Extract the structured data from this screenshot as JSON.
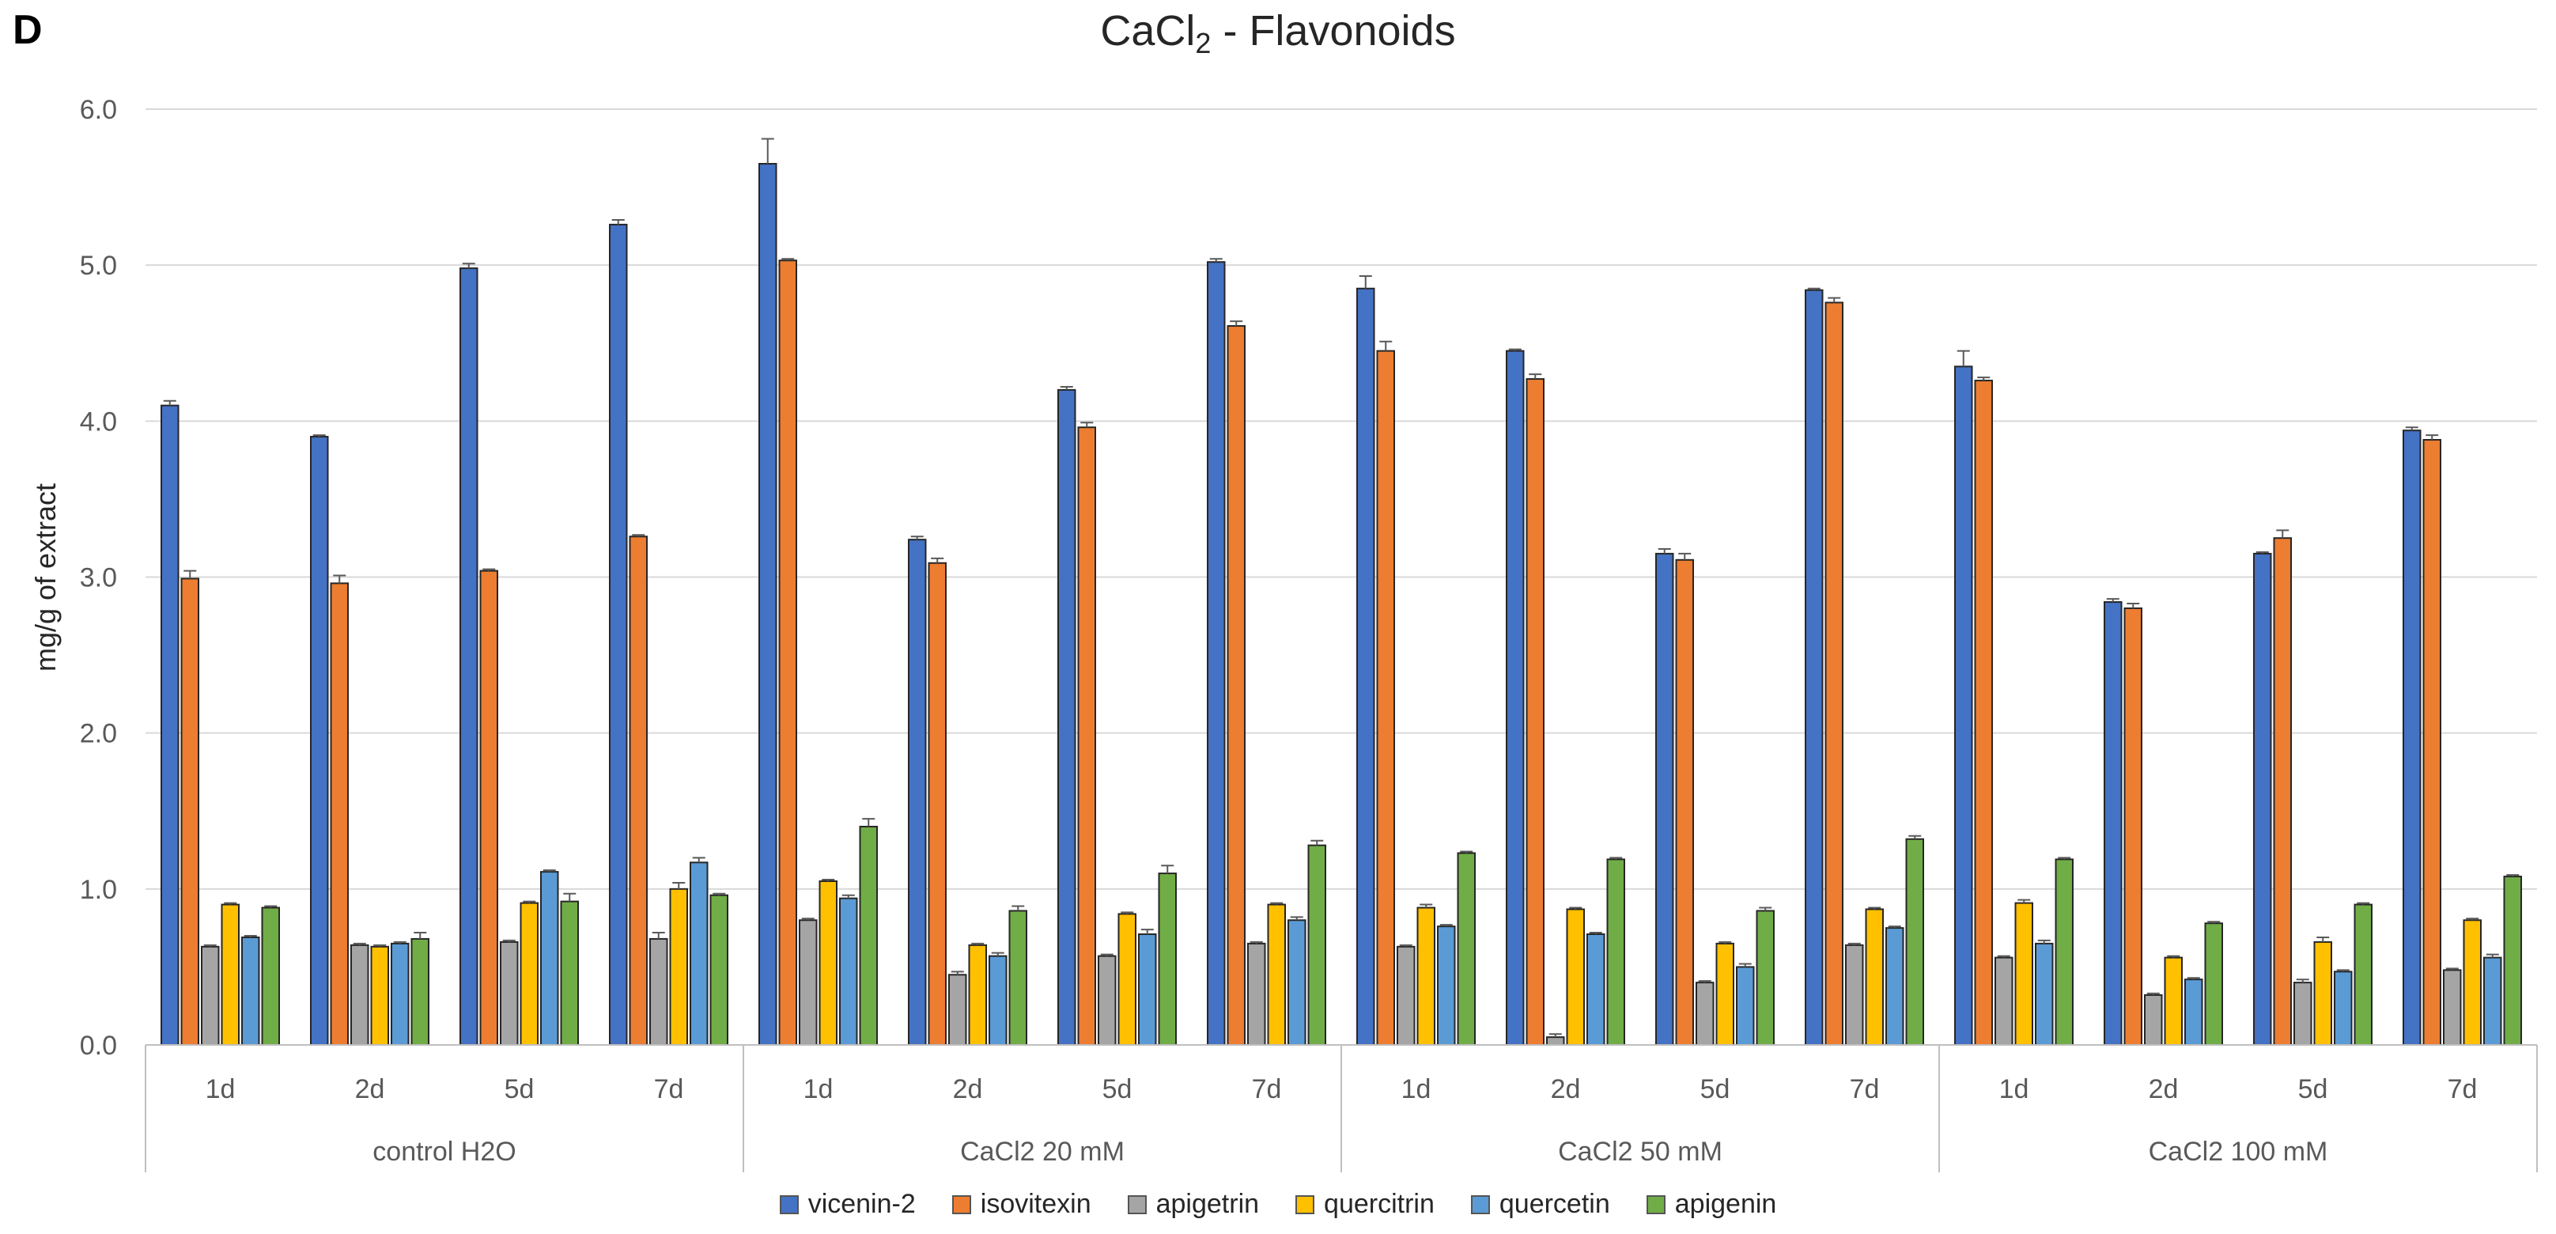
{
  "panel_label": "D",
  "title_main": "CaCl",
  "title_sub": "2",
  "title_rest": " - Flavonoids",
  "chart_data": {
    "type": "bar",
    "title": "CaCl2 - Flavonoids",
    "ylabel": "mg/g of extract",
    "xlabel": "",
    "ylim": [
      0,
      6
    ],
    "yticks": [
      "0.0",
      "1.0",
      "2.0",
      "3.0",
      "4.0",
      "5.0",
      "6.0"
    ],
    "groups": [
      {
        "name": "control H2O",
        "days": [
          "1d",
          "2d",
          "5d",
          "7d"
        ]
      },
      {
        "name": "CaCl2 20 mM",
        "days": [
          "1d",
          "2d",
          "5d",
          "7d"
        ]
      },
      {
        "name": "CaCl2 50 mM",
        "days": [
          "1d",
          "2d",
          "5d",
          "7d"
        ]
      },
      {
        "name": "CaCl2 100 mM",
        "days": [
          "1d",
          "2d",
          "5d",
          "7d"
        ]
      }
    ],
    "series": [
      {
        "name": "vicenin-2",
        "color": "#4472C4",
        "values": [
          4.1,
          3.9,
          4.98,
          5.26,
          5.65,
          3.24,
          4.2,
          5.02,
          4.85,
          4.45,
          3.15,
          4.84,
          4.35,
          2.84,
          3.15,
          3.94
        ],
        "errors": [
          0.03,
          0.01,
          0.03,
          0.03,
          0.16,
          0.02,
          0.02,
          0.02,
          0.08,
          0.01,
          0.03,
          0.01,
          0.1,
          0.02,
          0.01,
          0.02
        ]
      },
      {
        "name": "isovitexin",
        "color": "#ED7D31",
        "values": [
          2.99,
          2.96,
          3.04,
          3.26,
          5.03,
          3.09,
          3.96,
          4.61,
          4.45,
          4.27,
          3.11,
          4.76,
          4.26,
          2.8,
          3.25,
          3.88
        ],
        "errors": [
          0.05,
          0.05,
          0.01,
          0.01,
          0.01,
          0.03,
          0.03,
          0.03,
          0.06,
          0.03,
          0.04,
          0.03,
          0.02,
          0.03,
          0.05,
          0.03
        ]
      },
      {
        "name": "apigetrin",
        "color": "#A5A5A5",
        "values": [
          0.63,
          0.64,
          0.66,
          0.68,
          0.8,
          0.45,
          0.57,
          0.65,
          0.63,
          0.05,
          0.4,
          0.64,
          0.56,
          0.32,
          0.4,
          0.48
        ],
        "errors": [
          0.01,
          0.01,
          0.01,
          0.04,
          0.01,
          0.02,
          0.01,
          0.01,
          0.01,
          0.02,
          0.01,
          0.01,
          0.01,
          0.01,
          0.02,
          0.01
        ]
      },
      {
        "name": "quercitrin",
        "color": "#FFC000",
        "values": [
          0.9,
          0.63,
          0.91,
          1.0,
          1.05,
          0.64,
          0.84,
          0.9,
          0.88,
          0.87,
          0.65,
          0.87,
          0.91,
          0.56,
          0.66,
          0.8
        ],
        "errors": [
          0.01,
          0.01,
          0.01,
          0.04,
          0.01,
          0.01,
          0.01,
          0.01,
          0.02,
          0.01,
          0.01,
          0.01,
          0.02,
          0.01,
          0.03,
          0.01
        ]
      },
      {
        "name": "quercetin",
        "color": "#5B9BD5",
        "values": [
          0.69,
          0.65,
          1.11,
          1.17,
          0.94,
          0.57,
          0.71,
          0.8,
          0.76,
          0.71,
          0.5,
          0.75,
          0.65,
          0.42,
          0.47,
          0.56
        ],
        "errors": [
          0.01,
          0.01,
          0.01,
          0.03,
          0.02,
          0.02,
          0.03,
          0.02,
          0.01,
          0.01,
          0.02,
          0.01,
          0.02,
          0.01,
          0.01,
          0.02
        ]
      },
      {
        "name": "apigenin",
        "color": "#70AD47",
        "values": [
          0.88,
          0.68,
          0.92,
          0.96,
          1.4,
          0.86,
          1.1,
          1.28,
          1.23,
          1.19,
          0.86,
          1.32,
          1.19,
          0.78,
          0.9,
          1.08
        ],
        "errors": [
          0.01,
          0.04,
          0.05,
          0.01,
          0.05,
          0.03,
          0.05,
          0.03,
          0.01,
          0.01,
          0.02,
          0.02,
          0.01,
          0.01,
          0.01,
          0.01
        ]
      }
    ]
  }
}
